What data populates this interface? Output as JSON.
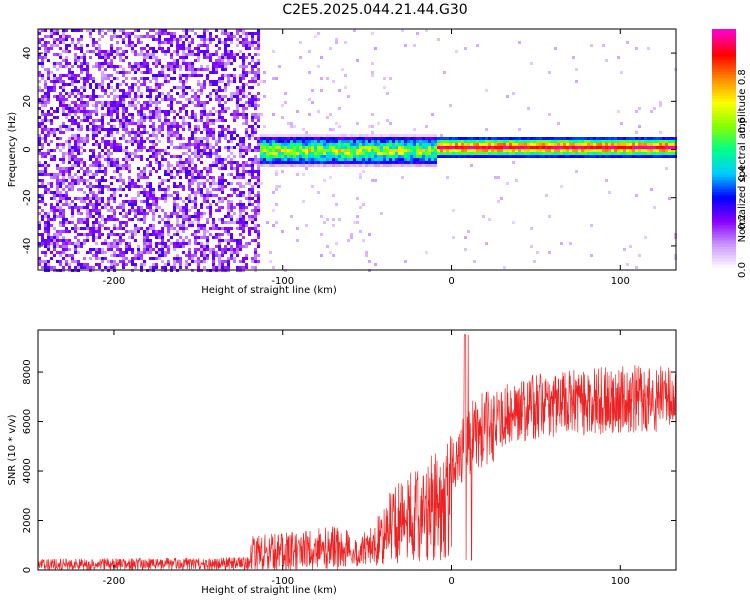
{
  "title": "C2E5.2025.044.21.44.G30",
  "colors": {
    "snr_line": "#ee2222",
    "background": "#ffffff",
    "axis": "#000000"
  },
  "chart_data": [
    {
      "type": "heatmap",
      "xlabel": "Height of straight line (km)",
      "ylabel": "Frequency (Hz)",
      "xlim": [
        -245,
        133
      ],
      "ylim": [
        -50,
        50
      ],
      "x_ticks": [
        -200,
        -100,
        0,
        100
      ],
      "y_ticks": [
        -40,
        -20,
        0,
        20,
        40
      ],
      "colorbar": {
        "label": "Normalized spectral amplitude",
        "range": [
          0,
          1
        ],
        "ticks": [
          0.0,
          0.2,
          0.4,
          0.6,
          0.8
        ],
        "colormap": [
          "#ffffff",
          "#cc99ff",
          "#8800ff",
          "#0000ff",
          "#00ccff",
          "#00ff88",
          "#88ff00",
          "#ffff00",
          "#ff8800",
          "#ff0000",
          "#ff00cc"
        ]
      },
      "regions": [
        {
          "x_range": [
            -245,
            -115
          ],
          "description": "broadband noise",
          "amplitude": 0.15
        },
        {
          "x_range": [
            -115,
            -45
          ],
          "description": "sparse noise",
          "amplitude": 0.05
        },
        {
          "x_range": [
            -115,
            133
          ],
          "description": "signal band near 0 Hz",
          "amplitude": 0.9
        }
      ]
    },
    {
      "type": "line",
      "xlabel": "Height of straight line (km)",
      "ylabel": "SNR (10 * v/v)",
      "xlim": [
        -245,
        133
      ],
      "ylim": [
        0,
        9700
      ],
      "x_ticks": [
        -200,
        -100,
        0,
        100
      ],
      "y_ticks": [
        0,
        2000,
        4000,
        6000,
        8000
      ],
      "series": [
        {
          "envelope_x": [
            -245,
            -120,
            -118,
            -60,
            -45,
            -35,
            -20,
            -10,
            0,
            8,
            10,
            15,
            20,
            30,
            40,
            60,
            80,
            100,
            120,
            133
          ],
          "envelope_y": [
            300,
            350,
            600,
            800,
            1500,
            2600,
            3200,
            3700,
            4300,
            5100,
            5300,
            5500,
            5700,
            6200,
            6500,
            6700,
            6800,
            6900,
            6900,
            7000
          ]
        }
      ]
    }
  ]
}
